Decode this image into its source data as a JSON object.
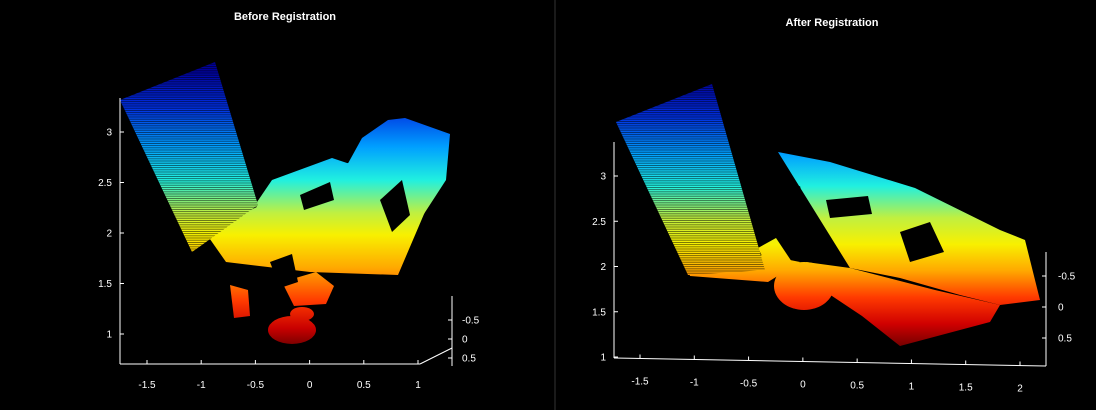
{
  "chart_data": [
    {
      "type": "scatter",
      "title": "Before Registration",
      "x_ticks": [
        "-1.5",
        "-1",
        "-0.5",
        "0",
        "0.5",
        "1"
      ],
      "y_ticks": [
        "1",
        "1.5",
        "2",
        "2.5",
        "3"
      ],
      "z_ticks": [
        "-0.5",
        "0",
        "0.5"
      ],
      "xlim": [
        -1.7,
        1.25
      ],
      "ylim": [
        0.75,
        3.45
      ],
      "zlim": [
        -0.9,
        0.7
      ],
      "grid": false,
      "legend": "none",
      "colormap": "jet",
      "background": "#000000"
    },
    {
      "type": "scatter",
      "title": "After Registration",
      "x_ticks": [
        "-1.5",
        "-1",
        "-0.5",
        "0",
        "0.5",
        "1",
        "1.5",
        "2"
      ],
      "y_ticks": [
        "1",
        "1.5",
        "2",
        "2.5",
        "3"
      ],
      "z_ticks": [
        "-0.5",
        "0",
        "0.5"
      ],
      "xlim": [
        -1.75,
        2.25
      ],
      "ylim": [
        0.95,
        3.4
      ],
      "zlim": [
        -0.9,
        0.7
      ],
      "grid": false,
      "legend": "none",
      "colormap": "jet",
      "background": "#000000"
    }
  ],
  "colors": {
    "jet_blue": "#00009a",
    "jet_cyan": "#00e0f0",
    "jet_yellow": "#f8f000",
    "jet_orange": "#ff8800",
    "jet_red": "#e81000",
    "jet_dark_red": "#8a0000"
  }
}
